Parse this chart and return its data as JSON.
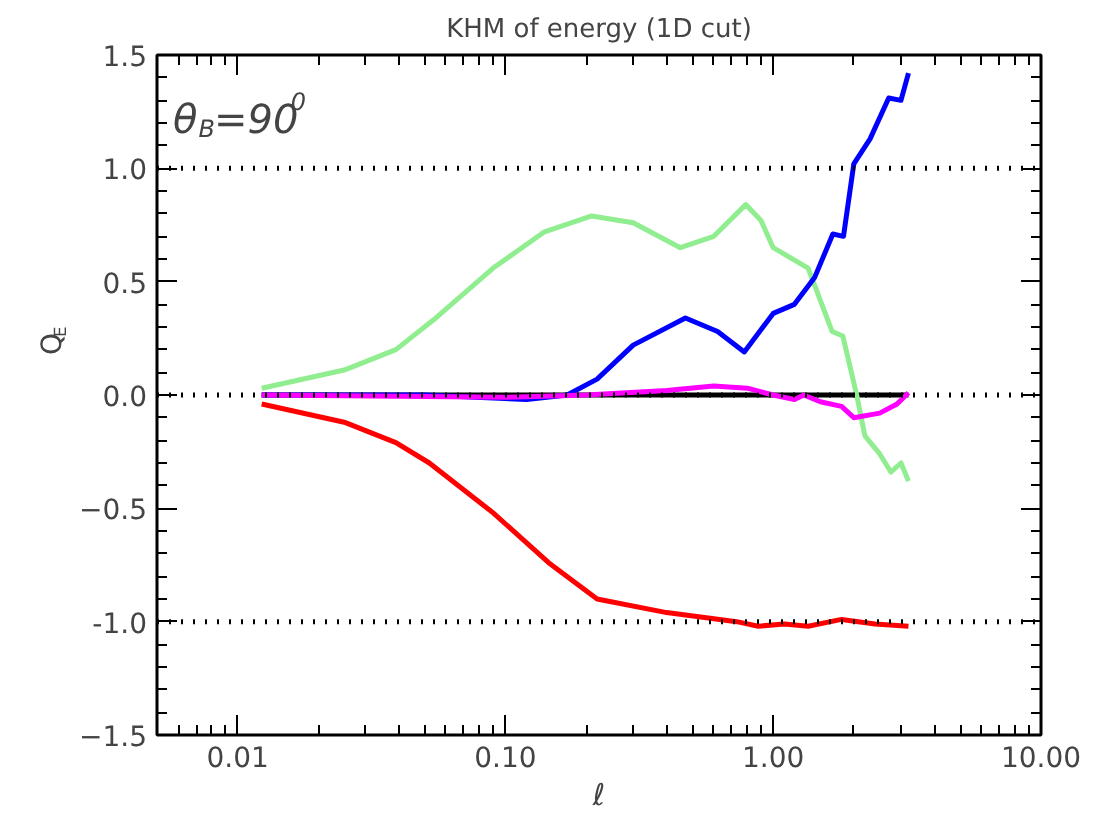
{
  "chart_data": {
    "type": "line",
    "title": "KHM of energy (1D cut)",
    "xlabel": "ℓ",
    "ylabel": "Q$_{E}$",
    "annotations": [
      "θ$_{B}$=90$^{0}$"
    ],
    "log": "x",
    "grid": false,
    "line_style": "solid",
    "marker": "none",
    "xlim": [
      0.005,
      10
    ],
    "xticks": [
      {
        "value": 0.01,
        "label": "0.01"
      },
      {
        "value": 0.1,
        "label": "0.10"
      },
      {
        "value": 1,
        "label": "1.00"
      },
      {
        "value": 10,
        "label": "10.00"
      }
    ],
    "ylim": [
      -1.5,
      1.5
    ],
    "yticks": [
      -1.5,
      {
        "value": -1,
        "label": "-1.0"
      },
      -0.5,
      {
        "value": 0,
        "label": "0.0"
      },
      0.5,
      {
        "value": 1,
        "label": "1.0"
      },
      1.5
    ],
    "ref_lines": [
      {
        "axis": "y",
        "value": 1,
        "label": null,
        "color": "#000000",
        "line_style": "dotted"
      },
      {
        "axis": "y",
        "value": 0,
        "label": null,
        "color": "#000000",
        "line_style": "dotted"
      },
      {
        "axis": "y",
        "value": -1,
        "label": null,
        "color": "#000000",
        "line_style": "dotted"
      }
    ],
    "series": [
      {
        "color": "#000000",
        "x": [
          0.0123,
          0.1,
          1,
          3.2
        ],
        "values": [
          0,
          0,
          0,
          0
        ]
      },
      {
        "color": "#90ee90",
        "x": [
          0.0123,
          0.025,
          0.039,
          0.055,
          0.09,
          0.14,
          0.21,
          0.3,
          0.45,
          0.6,
          0.79,
          0.9,
          1.0,
          1.35,
          1.66,
          1.82,
          2.05,
          2.2,
          2.5,
          2.75,
          3.0,
          3.2
        ],
        "values": [
          0.03,
          0.11,
          0.2,
          0.34,
          0.56,
          0.72,
          0.79,
          0.76,
          0.65,
          0.7,
          0.84,
          0.77,
          0.65,
          0.56,
          0.28,
          0.26,
          0.0,
          -0.18,
          -0.26,
          -0.34,
          -0.3,
          -0.38
        ]
      },
      {
        "color": "#0000ff",
        "x": [
          0.0123,
          0.05,
          0.12,
          0.17,
          0.22,
          0.3,
          0.47,
          0.62,
          0.78,
          1.0,
          1.2,
          1.43,
          1.67,
          1.83,
          2.0,
          2.3,
          2.7,
          3.0,
          3.2
        ],
        "values": [
          0,
          0,
          -0.02,
          0.0,
          0.07,
          0.22,
          0.34,
          0.28,
          0.19,
          0.36,
          0.4,
          0.52,
          0.71,
          0.7,
          1.02,
          1.13,
          1.31,
          1.3,
          1.42
        ]
      },
      {
        "color": "#ff0000",
        "x": [
          0.0123,
          0.025,
          0.039,
          0.052,
          0.09,
          0.145,
          0.22,
          0.4,
          0.73,
          0.88,
          1.1,
          1.35,
          1.8,
          2.4,
          3.2
        ],
        "values": [
          -0.04,
          -0.12,
          -0.21,
          -0.3,
          -0.52,
          -0.74,
          -0.9,
          -0.96,
          -1.0,
          -1.02,
          -1.01,
          -1.02,
          -0.99,
          -1.01,
          -1.02
        ]
      },
      {
        "color": "#ff00ff",
        "x": [
          0.0123,
          0.1,
          0.2,
          0.4,
          0.6,
          0.8,
          1.0,
          1.2,
          1.3,
          1.5,
          1.8,
          2.0,
          2.5,
          2.9,
          3.2
        ],
        "values": [
          0,
          -0.01,
          0,
          0.02,
          0.04,
          0.03,
          0.0,
          -0.02,
          0,
          -0.03,
          -0.05,
          -0.1,
          -0.08,
          -0.04,
          0.01
        ]
      }
    ]
  }
}
